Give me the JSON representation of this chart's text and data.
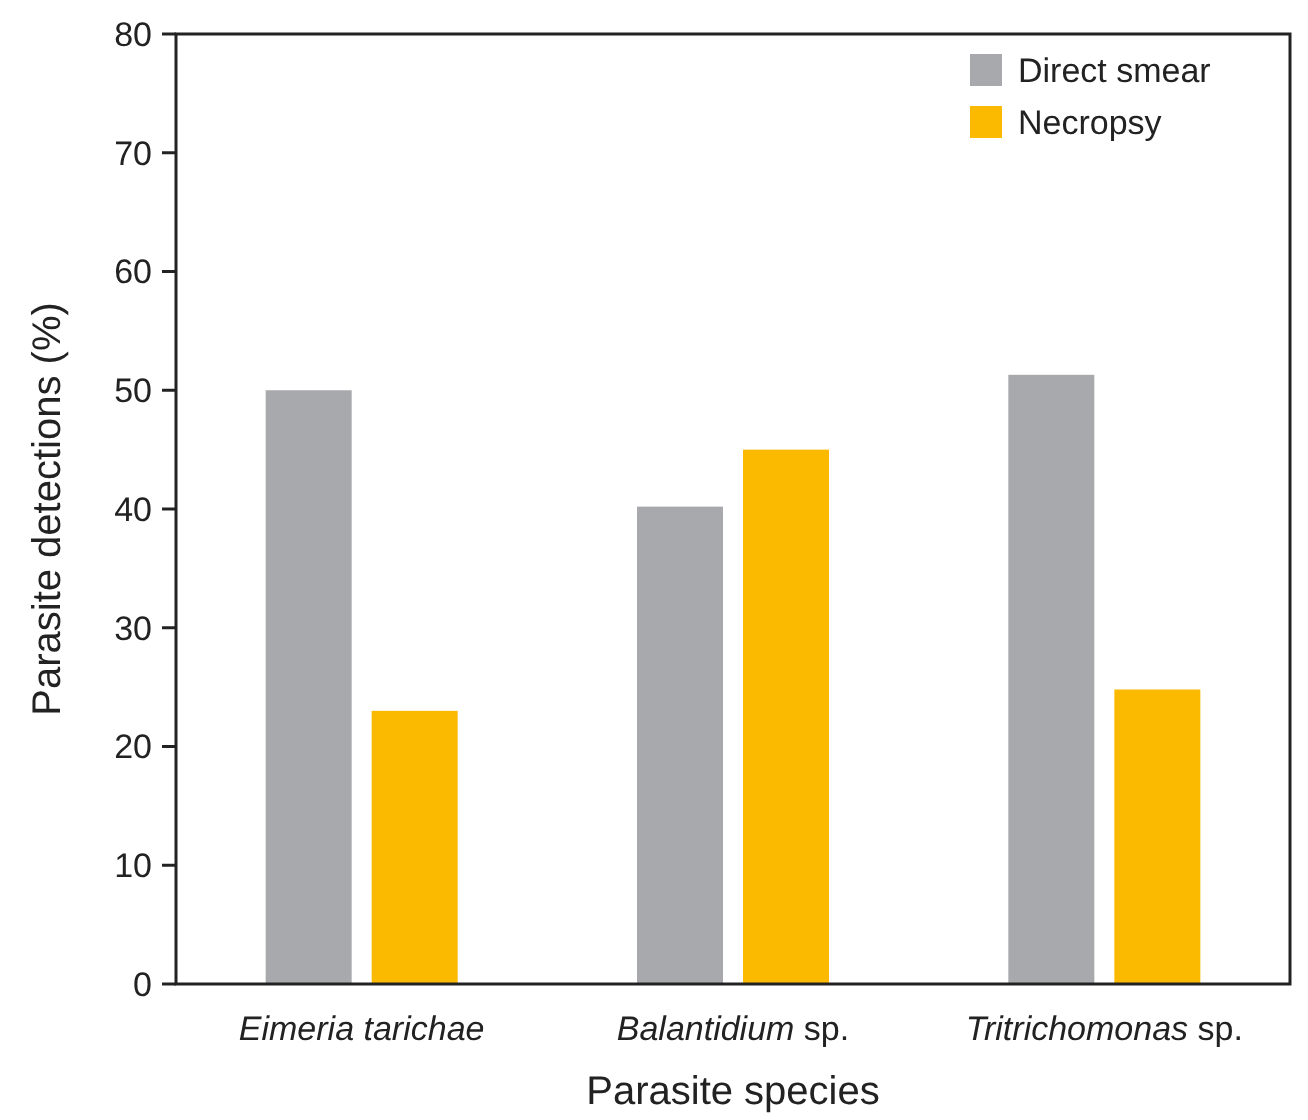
{
  "chart_data": {
    "type": "bar",
    "xlabel": "Parasite species",
    "ylabel": "Parasite detections (%)",
    "categories": [
      "Eimeria tarichae",
      "Balantidium sp.",
      "Tritrichomonas sp."
    ],
    "series": [
      {
        "name": "Direct smear",
        "color": "#a7a9ac",
        "values": [
          50,
          40.2,
          51.3
        ]
      },
      {
        "name": "Necropsy",
        "color": "#fbb900",
        "values": [
          23,
          45,
          24.8
        ]
      }
    ],
    "ylim": [
      0,
      80
    ],
    "yticks": [
      0,
      10,
      20,
      30,
      40,
      50,
      60,
      70,
      80
    ],
    "grid": false,
    "legend": "top right"
  }
}
